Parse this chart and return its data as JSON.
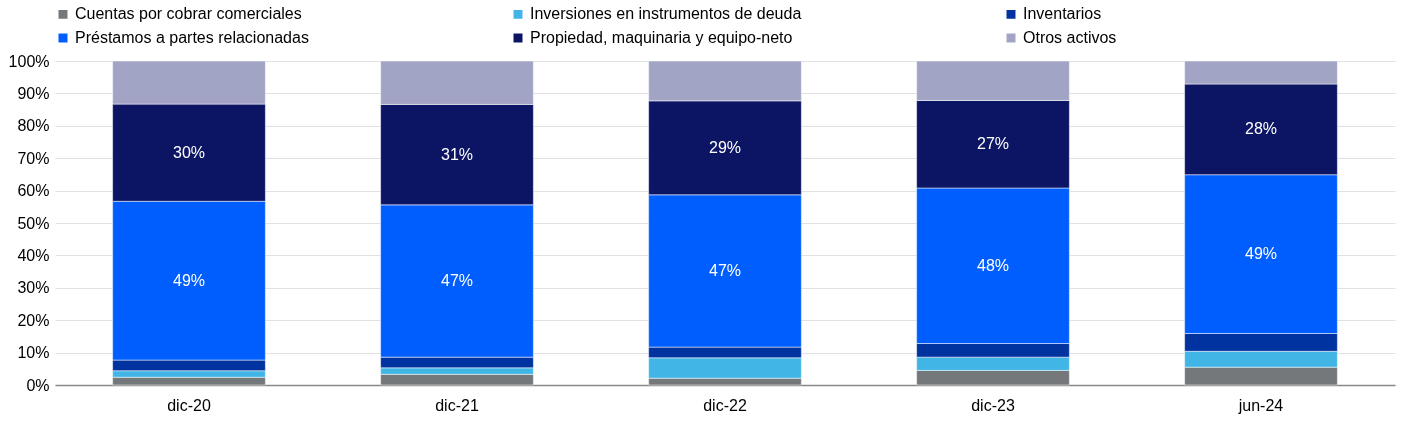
{
  "chart_data": {
    "type": "bar",
    "stacked": true,
    "categories": [
      "dic-20",
      "dic-21",
      "dic-22",
      "dic-23",
      "jun-24"
    ],
    "series": [
      {
        "name": "Cuentas por cobrar comerciales",
        "color": "#75787b",
        "values": [
          2.4,
          3.3,
          2.1,
          4.5,
          5.5
        ]
      },
      {
        "name": "Inversiones en instrumentos de deuda",
        "color": "#41b6e6",
        "values": [
          2.0,
          2.0,
          6.3,
          4.1,
          4.9
        ]
      },
      {
        "name": "Inventarios",
        "color": "#0032a0",
        "values": [
          3.3,
          3.3,
          3.3,
          4.2,
          5.5
        ]
      },
      {
        "name": "Préstamos a partes relacionadas",
        "color": "#005eff",
        "values": [
          49,
          47,
          47,
          48,
          49
        ],
        "value_labels": [
          "49%",
          "47%",
          "47%",
          "48%",
          "49%"
        ]
      },
      {
        "name": "Propiedad, maquinaria y equipo-neto",
        "color": "#0c1464",
        "values": [
          30,
          31,
          29,
          27,
          28
        ],
        "value_labels": [
          "30%",
          "31%",
          "29%",
          "27%",
          "28%"
        ]
      },
      {
        "name": "Otros activos",
        "color": "#a2a4c6",
        "values": [
          13.3,
          13.4,
          12.3,
          12.2,
          7.1
        ]
      }
    ],
    "ylim": [
      0,
      100
    ],
    "yticks": [
      {
        "value": 0,
        "label": "0%"
      },
      {
        "value": 10,
        "label": "10%"
      },
      {
        "value": 20,
        "label": "20%"
      },
      {
        "value": 30,
        "label": "30%"
      },
      {
        "value": 40,
        "label": "40%"
      },
      {
        "value": 50,
        "label": "50%"
      },
      {
        "value": 60,
        "label": "60%"
      },
      {
        "value": 70,
        "label": "70%"
      },
      {
        "value": 80,
        "label": "80%"
      },
      {
        "value": 90,
        "label": "90%"
      },
      {
        "value": 100,
        "label": "100%"
      }
    ],
    "grid": "y",
    "legend": "top"
  }
}
